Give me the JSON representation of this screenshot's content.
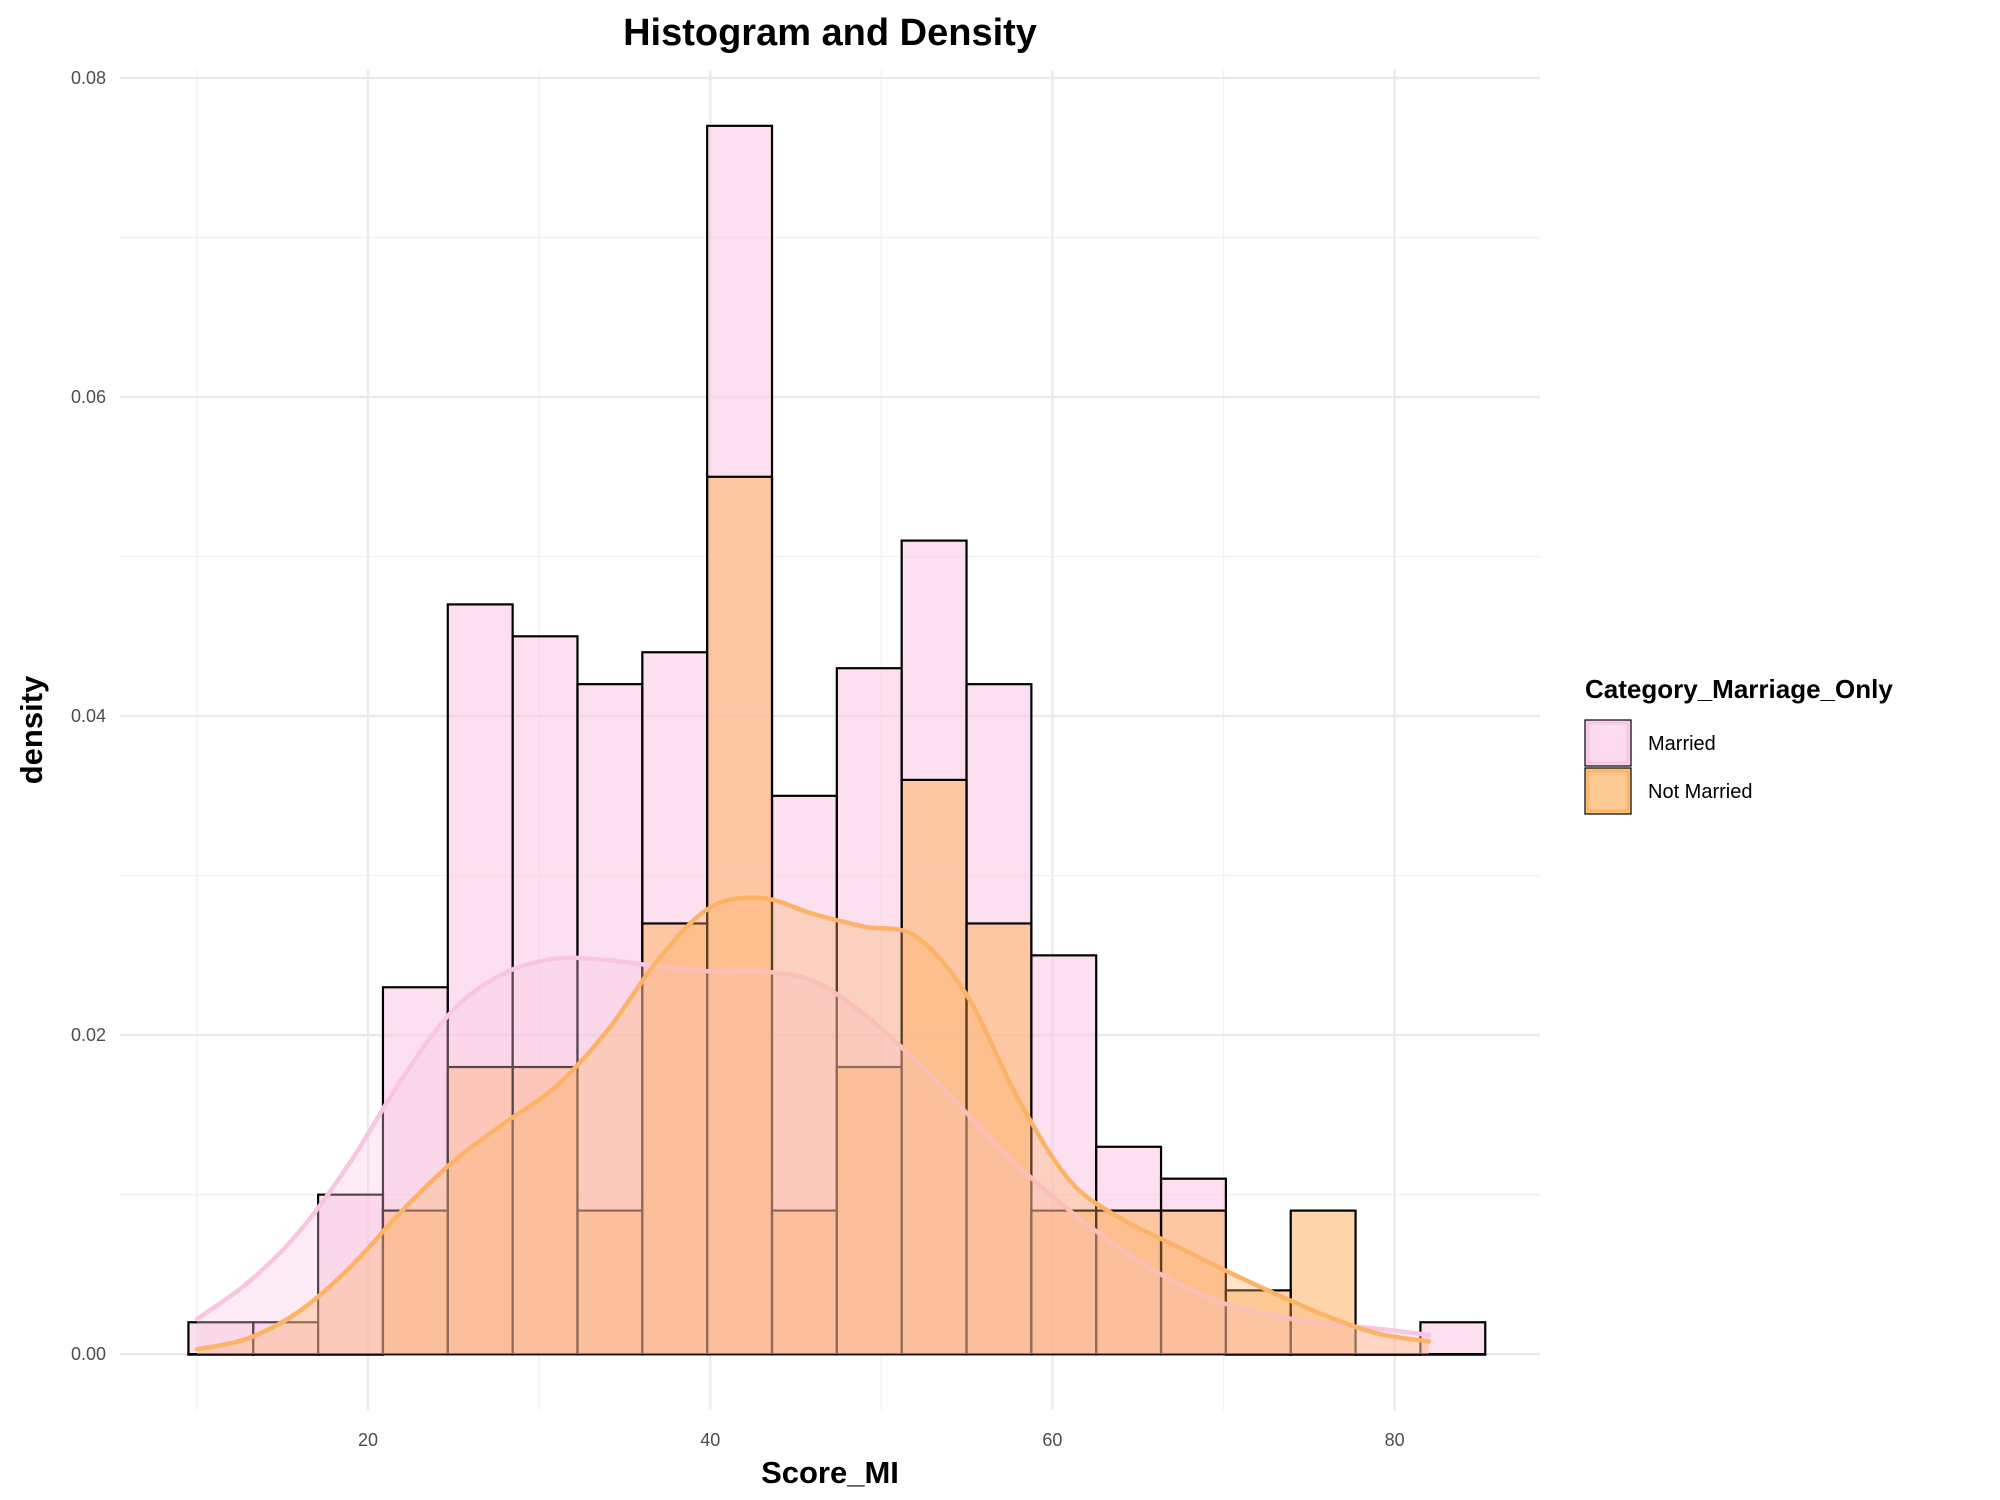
{
  "chart_data": {
    "type": "histogram+density",
    "title": "Histogram and Density",
    "xlabel": "Score_MI",
    "ylabel": "density",
    "xlim": [
      5.5,
      88.5
    ],
    "ylim": [
      -0.0035,
      0.0805
    ],
    "x_ticks": [
      20,
      40,
      60,
      80
    ],
    "x_tick_labels": [
      "20",
      "40",
      "60",
      "80"
    ],
    "y_ticks": [
      0.0,
      0.02,
      0.04,
      0.06,
      0.08
    ],
    "y_tick_labels": [
      "0.00",
      "0.02",
      "0.04",
      "0.06",
      "0.08"
    ],
    "grid": true,
    "legend": {
      "title": "Category_Marriage_Only",
      "position": "right",
      "entries": [
        "Married",
        "Not Married"
      ]
    },
    "bins": {
      "start": 9.5,
      "width": 3.79
    },
    "series": [
      {
        "name": "Married",
        "fill": "#f9c6e2",
        "line": "#f9c6e2",
        "histogram": [
          0.002,
          0.002,
          0.01,
          0.023,
          0.047,
          0.045,
          0.042,
          0.044,
          0.077,
          0.035,
          0.043,
          0.051,
          0.042,
          0.025,
          0.013,
          0.011,
          0.0,
          0.0,
          0.0,
          0.002
        ],
        "density": {
          "x": [
            10,
            13,
            16,
            19,
            22,
            25,
            28,
            31,
            34,
            37,
            40,
            43,
            46,
            49,
            52,
            55,
            58,
            61,
            64,
            67,
            70,
            73,
            76,
            79,
            82
          ],
          "y": [
            0.0022,
            0.0045,
            0.0077,
            0.0121,
            0.0173,
            0.0216,
            0.0239,
            0.0248,
            0.0247,
            0.0243,
            0.024,
            0.024,
            0.0234,
            0.0213,
            0.0184,
            0.0151,
            0.0118,
            0.009,
            0.0066,
            0.0046,
            0.0032,
            0.0024,
            0.0019,
            0.0016,
            0.0012
          ]
        }
      },
      {
        "name": "Not Married",
        "fill": "#fdb366",
        "line": "#fdb366",
        "histogram": [
          0.0,
          0.0,
          0.0,
          0.009,
          0.018,
          0.018,
          0.009,
          0.027,
          0.055,
          0.009,
          0.018,
          0.036,
          0.027,
          0.009,
          0.009,
          0.009,
          0.004,
          0.009,
          0.0,
          0.0
        ],
        "density": {
          "x": [
            10,
            13,
            16,
            19,
            22,
            25,
            28,
            31,
            34,
            37,
            40,
            43,
            46,
            49,
            52,
            55,
            58,
            61,
            64,
            67,
            70,
            73,
            76,
            79,
            82
          ],
          "y": [
            0.0003,
            0.001,
            0.0027,
            0.0055,
            0.009,
            0.0121,
            0.0145,
            0.0168,
            0.0203,
            0.0248,
            0.028,
            0.0286,
            0.0276,
            0.0268,
            0.0262,
            0.0225,
            0.016,
            0.0109,
            0.0085,
            0.0069,
            0.0053,
            0.0038,
            0.0024,
            0.0013,
            0.0008
          ]
        }
      }
    ]
  }
}
